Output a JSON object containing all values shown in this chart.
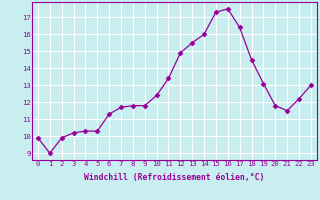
{
  "x_data": [
    0,
    1,
    2,
    3,
    4,
    5,
    6,
    7,
    8,
    9,
    10,
    11,
    12,
    13,
    14,
    15,
    16,
    17,
    18,
    19,
    20,
    21,
    22,
    23
  ],
  "y_data": [
    9.9,
    9.0,
    9.9,
    10.2,
    10.3,
    10.3,
    11.3,
    11.7,
    11.8,
    11.8,
    12.4,
    13.4,
    14.9,
    15.5,
    16.0,
    17.3,
    17.5,
    16.4,
    14.5,
    13.1,
    11.8,
    11.5,
    12.2,
    13.0
  ],
  "line_color": "#990099",
  "marker": "D",
  "marker_size": 2.5,
  "bg_color": "#c8eef0",
  "grid_color": "#ffffff",
  "xlabel": "Windchill (Refroidissement éolien,°C)",
  "xlim": [
    -0.5,
    23.5
  ],
  "ylim": [
    8.6,
    17.9
  ],
  "xticks": [
    0,
    1,
    2,
    3,
    4,
    5,
    6,
    7,
    8,
    9,
    10,
    11,
    12,
    13,
    14,
    15,
    16,
    17,
    18,
    19,
    20,
    21,
    22,
    23
  ],
  "yticks": [
    9,
    10,
    11,
    12,
    13,
    14,
    15,
    16,
    17
  ],
  "tick_fontsize": 5.2,
  "xlabel_fontsize": 5.8
}
